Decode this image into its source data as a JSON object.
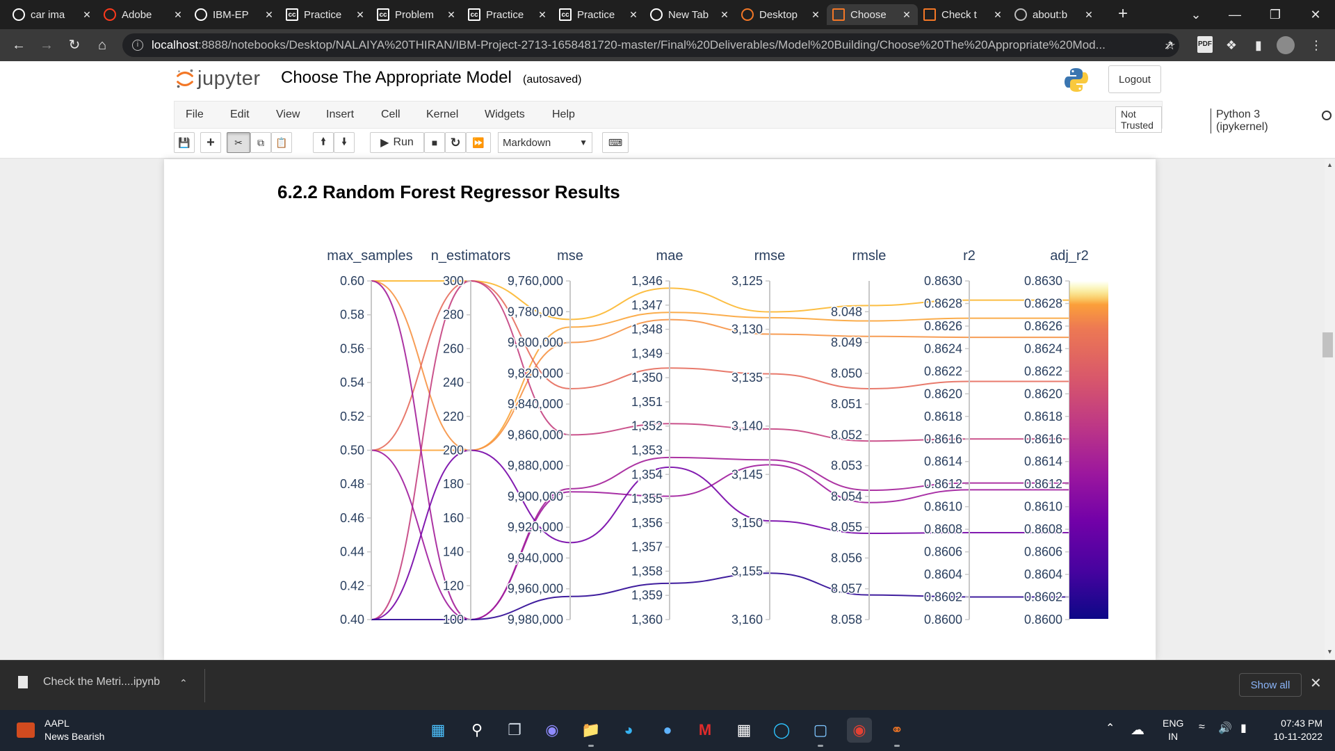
{
  "browser": {
    "tabs": [
      {
        "title": "car ima",
        "favicon": "google-icon",
        "favicon_color": "#ffffff"
      },
      {
        "title": "Adobe",
        "favicon": "adobe-icon",
        "favicon_color": "#ff3a1c"
      },
      {
        "title": "IBM-EP",
        "favicon": "github-icon",
        "favicon_color": "#ffffff"
      },
      {
        "title": "Practice",
        "favicon": "cc-icon",
        "favicon_color": "#ffffff"
      },
      {
        "title": "Problem",
        "favicon": "cc-icon",
        "favicon_color": "#ffffff"
      },
      {
        "title": "Practice",
        "favicon": "cc-icon",
        "favicon_color": "#ffffff"
      },
      {
        "title": "Practice",
        "favicon": "cc-icon",
        "favicon_color": "#ffffff"
      },
      {
        "title": "New Tab",
        "favicon": "chrome-icon",
        "favicon_color": "#ffffff"
      },
      {
        "title": "Desktop",
        "favicon": "jupyter-icon",
        "favicon_color": "#f37726"
      },
      {
        "title": "Choose",
        "favicon": "notebook-icon",
        "favicon_color": "#f37726",
        "active": true
      },
      {
        "title": "Check t",
        "favicon": "notebook-icon",
        "favicon_color": "#f37726"
      },
      {
        "title": "about:b",
        "favicon": "globe-icon",
        "favicon_color": "#bdbdbd"
      }
    ],
    "url_host": "localhost",
    "url_rest": ":8888/notebooks/Desktop/NALAIYA%20THIRAN/IBM-Project-2713-1658481720-master/Final%20Deliverables/Model%20Building/Choose%20The%20Appropriate%20Mod..."
  },
  "jupyter": {
    "logo_text": "jupyter",
    "notebook_title": "Choose The Appropriate Model",
    "autosave": "(autosaved)",
    "logout": "Logout",
    "menu": [
      "File",
      "Edit",
      "View",
      "Insert",
      "Cell",
      "Kernel",
      "Widgets",
      "Help"
    ],
    "not_trusted": "Not Trusted",
    "kernel": "Python 3 (ipykernel)",
    "run_label": "Run",
    "cell_type": "Markdown"
  },
  "cell": {
    "heading": "6.2.2 Random Forest Regressor Results"
  },
  "chart_data": {
    "type": "parallel_coordinates",
    "title": "",
    "colorscale": "plasma",
    "color_dimension": "adj_r2",
    "dimensions": [
      {
        "label": "max_samples",
        "range": [
          0.4,
          0.6
        ],
        "ticks": [
          "0.60",
          "0.58",
          "0.56",
          "0.54",
          "0.52",
          "0.50",
          "0.48",
          "0.46",
          "0.44",
          "0.42",
          "0.40"
        ],
        "reversed": false
      },
      {
        "label": "n_estimators",
        "range": [
          100,
          300
        ],
        "ticks": [
          "300",
          "280",
          "260",
          "240",
          "220",
          "200",
          "180",
          "160",
          "140",
          "120",
          "100"
        ],
        "reversed": false
      },
      {
        "label": "mse",
        "range": [
          9760000,
          9980000
        ],
        "ticks": [
          "9,760,000",
          "9,780,000",
          "9,800,000",
          "9,820,000",
          "9,840,000",
          "9,860,000",
          "9,880,000",
          "9,900,000",
          "9,920,000",
          "9,940,000",
          "9,960,000",
          "9,980,000"
        ],
        "reversed": true
      },
      {
        "label": "mae",
        "range": [
          1346,
          1360
        ],
        "ticks": [
          "1,346",
          "1,347",
          "1,348",
          "1,349",
          "1,350",
          "1,351",
          "1,352",
          "1,353",
          "1,354",
          "1,355",
          "1,356",
          "1,357",
          "1,358",
          "1,359",
          "1,360"
        ],
        "reversed": true
      },
      {
        "label": "rmse",
        "range": [
          3125,
          3160
        ],
        "ticks": [
          "3,125",
          "3,130",
          "3,135",
          "3,140",
          "3,145",
          "3,150",
          "3,155",
          "3,160"
        ],
        "reversed": true
      },
      {
        "label": "rmsle",
        "range": [
          8.047,
          8.058
        ],
        "ticks": [
          "8.048",
          "8.049",
          "8.050",
          "8.051",
          "8.052",
          "8.053",
          "8.054",
          "8.055",
          "8.056",
          "8.057",
          "8.058"
        ],
        "reversed": true
      },
      {
        "label": "r2",
        "range": [
          0.86,
          0.863
        ],
        "ticks": [
          "0.8630",
          "0.8628",
          "0.8626",
          "0.8624",
          "0.8622",
          "0.8620",
          "0.8618",
          "0.8616",
          "0.8614",
          "0.8612",
          "0.8610",
          "0.8608",
          "0.8606",
          "0.8604",
          "0.8602",
          "0.8600"
        ],
        "reversed": false
      },
      {
        "label": "adj_r2",
        "range": [
          0.86,
          0.863
        ],
        "ticks": [
          "0.8630",
          "0.8628",
          "0.8626",
          "0.8624",
          "0.8622",
          "0.8620",
          "0.8618",
          "0.8616",
          "0.8614",
          "0.8612",
          "0.8610",
          "0.8608",
          "0.8606",
          "0.8604",
          "0.8602",
          "0.8600"
        ],
        "reversed": false
      }
    ],
    "rows": [
      {
        "max_samples": 0.6,
        "n_estimators": 300,
        "mse": 9785000,
        "mae": 1346.3,
        "rmse": 3128.2,
        "rmsle": 8.0478,
        "r2": 0.86283,
        "adj_r2": 0.86283
      },
      {
        "max_samples": 0.5,
        "n_estimators": 200,
        "mse": 9790000,
        "mae": 1347.3,
        "rmse": 3128.8,
        "rmsle": 8.0483,
        "r2": 0.86267,
        "adj_r2": 0.86267
      },
      {
        "max_samples": 0.6,
        "n_estimators": 200,
        "mse": 9800000,
        "mae": 1347.6,
        "rmse": 3130.5,
        "rmsle": 8.0488,
        "r2": 0.8625,
        "adj_r2": 0.8625
      },
      {
        "max_samples": 0.5,
        "n_estimators": 300,
        "mse": 9830000,
        "mae": 1349.6,
        "rmse": 3134.6,
        "rmsle": 8.0505,
        "r2": 0.86211,
        "adj_r2": 0.86211
      },
      {
        "max_samples": 0.4,
        "n_estimators": 300,
        "mse": 9860000,
        "mae": 1351.9,
        "rmse": 3140.3,
        "rmsle": 8.0522,
        "r2": 0.8616,
        "adj_r2": 0.8616
      },
      {
        "max_samples": 0.6,
        "n_estimators": 100,
        "mse": 9895000,
        "mae": 1353.3,
        "rmse": 3143.5,
        "rmsle": 8.0538,
        "r2": 0.86121,
        "adj_r2": 0.86121
      },
      {
        "max_samples": 0.5,
        "n_estimators": 100,
        "mse": 9897000,
        "mae": 1354.9,
        "rmse": 3144.0,
        "rmsle": 8.0542,
        "r2": 0.86115,
        "adj_r2": 0.86115
      },
      {
        "max_samples": 0.4,
        "n_estimators": 200,
        "mse": 9930000,
        "mae": 1353.7,
        "rmse": 3149.8,
        "rmsle": 8.0552,
        "r2": 0.86077,
        "adj_r2": 0.86077
      },
      {
        "max_samples": 0.4,
        "n_estimators": 100,
        "mse": 9965000,
        "mae": 1358.5,
        "rmse": 3155.2,
        "rmsle": 8.0572,
        "r2": 0.8602,
        "adj_r2": 0.8602
      }
    ]
  },
  "downloads": {
    "file": "Check the Metri....ipynb",
    "show_all": "Show all"
  },
  "taskbar": {
    "stock_symbol": "AAPL",
    "stock_status": "News Bearish",
    "lang_1": "ENG",
    "lang_2": "IN",
    "time": "07:43 PM",
    "date": "10-11-2022"
  }
}
